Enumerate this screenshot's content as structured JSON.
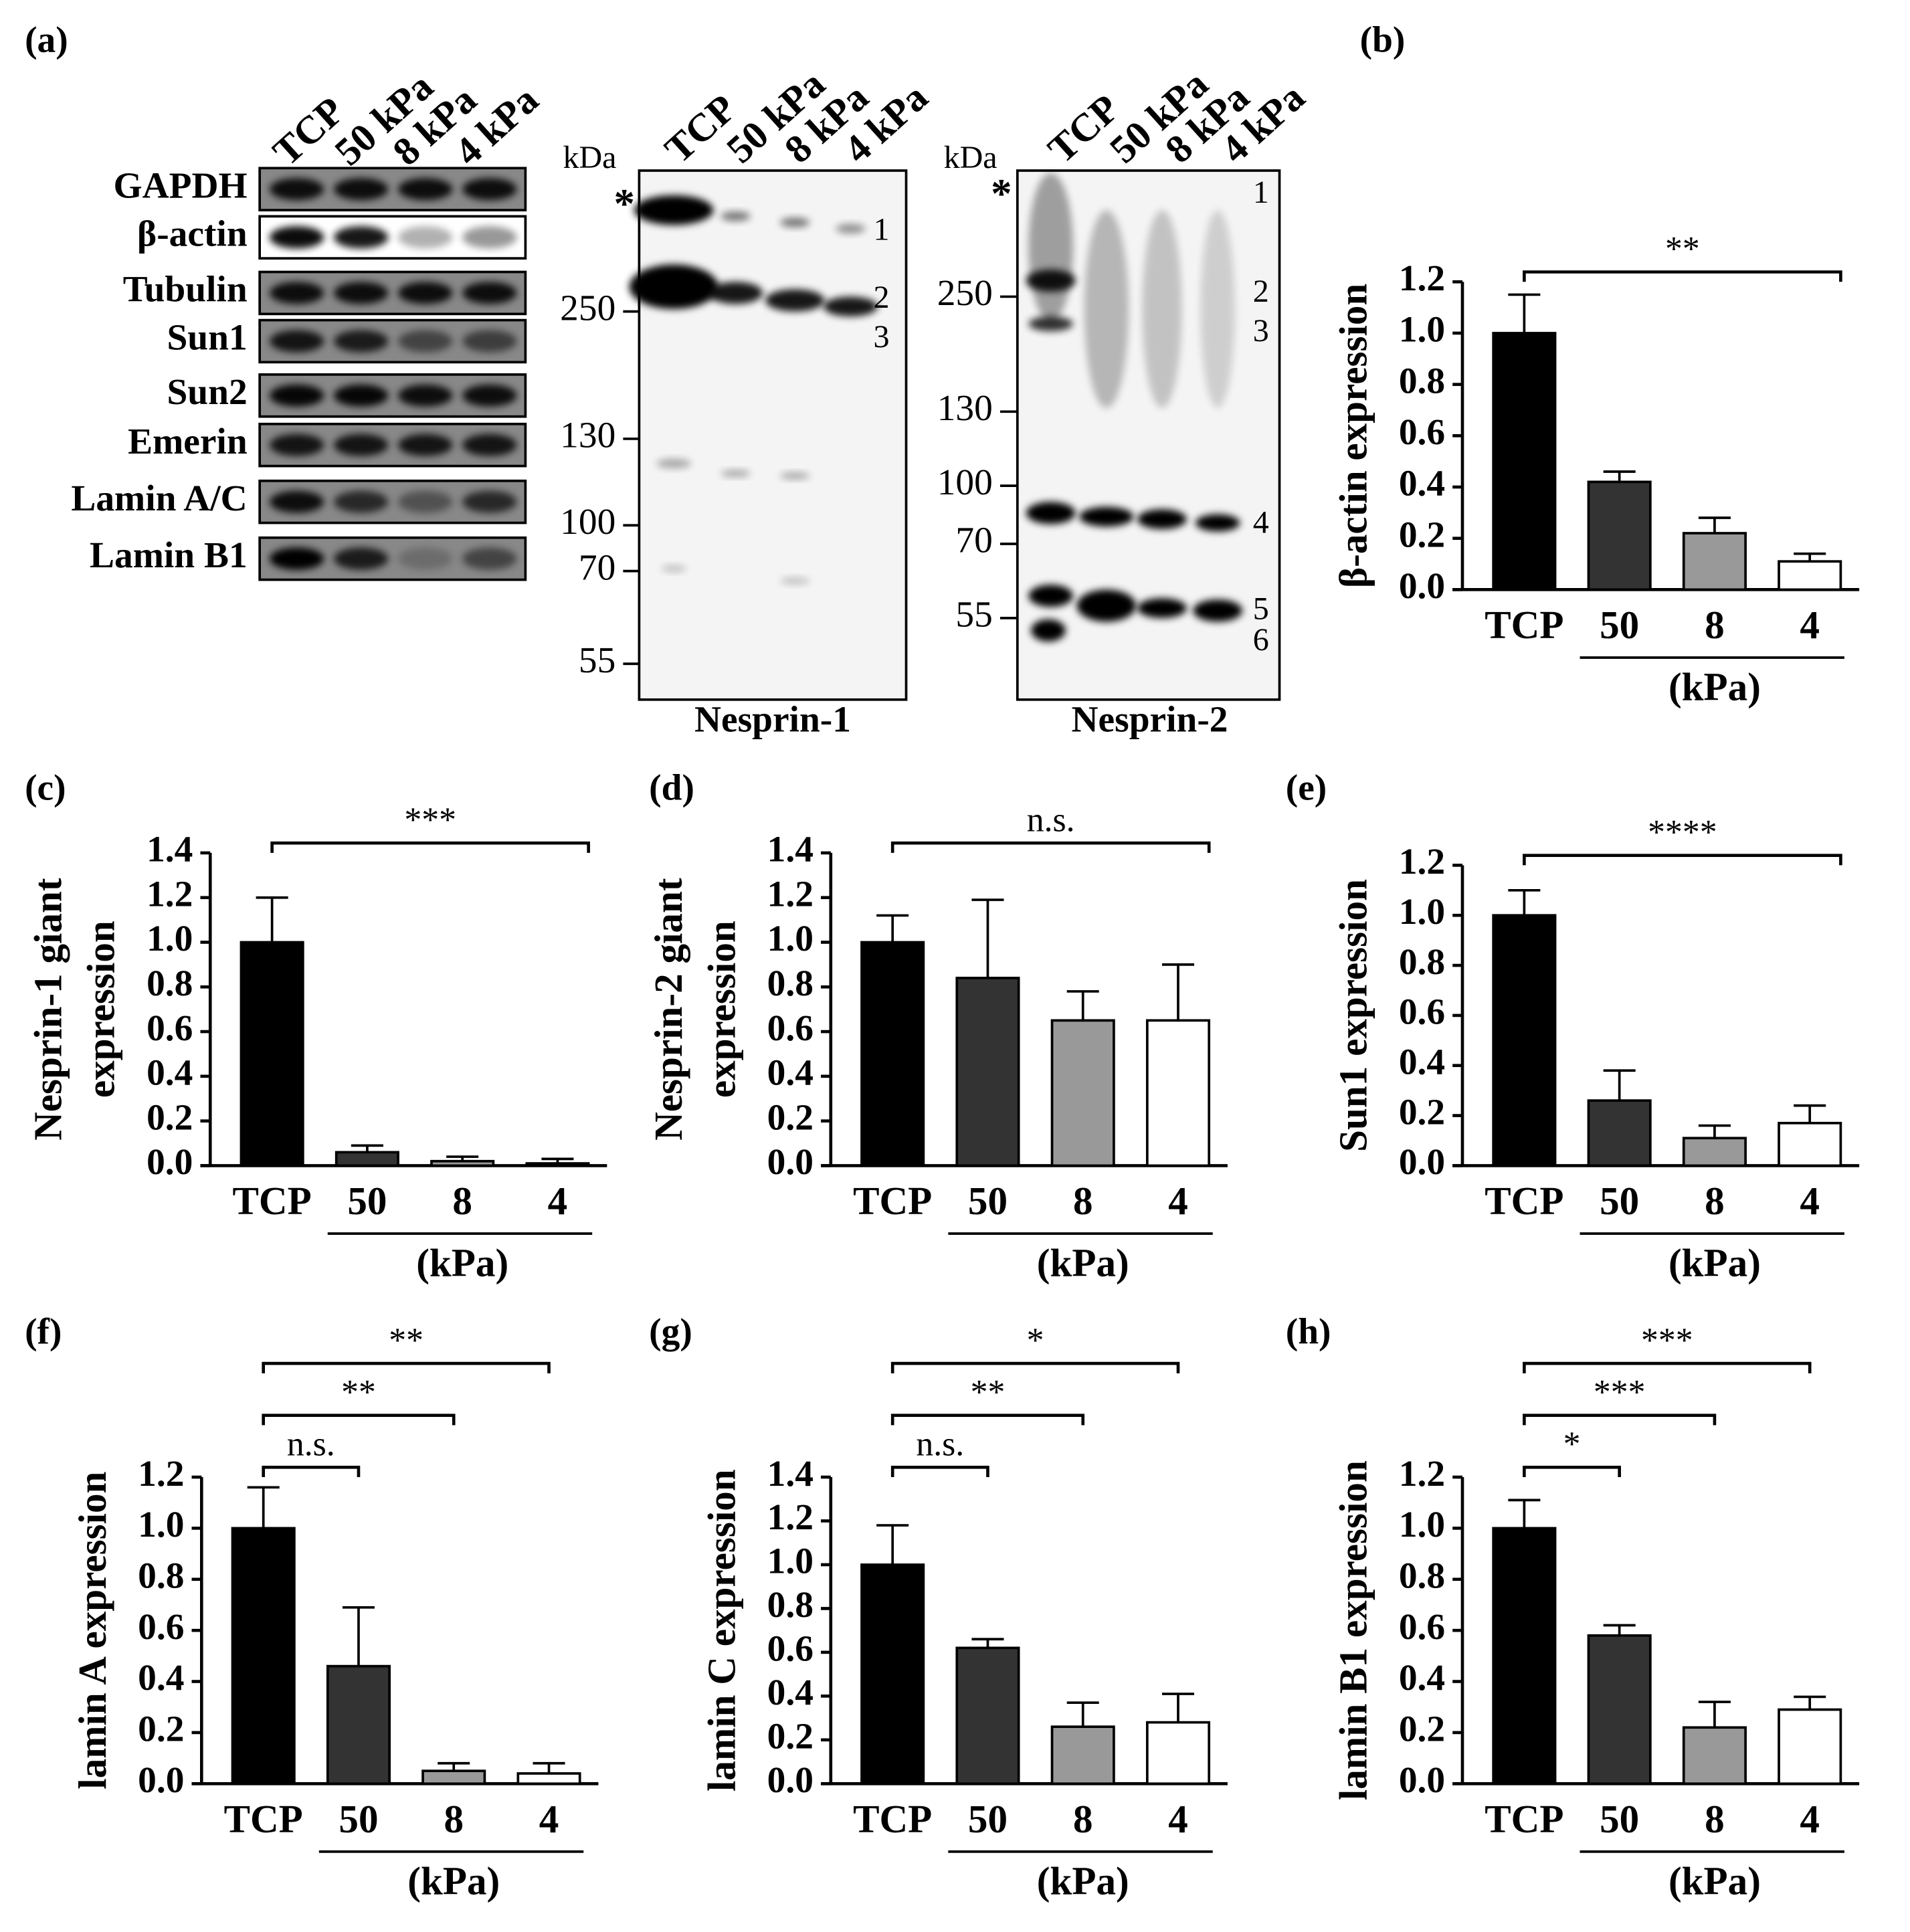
{
  "blots": {
    "panel": "(a)",
    "lanes": [
      "TCP",
      "50 kPa",
      "8 kPa",
      "4 kPa"
    ],
    "proteins": [
      "GAPDH",
      "β-actin",
      "Tubulin",
      "Sun1",
      "Sun2",
      "Emerin",
      "Lamin A/C",
      "Lamin B1"
    ],
    "kda_label": "kDa",
    "asterisk": "*",
    "nesprin1": {
      "title": "Nesprin-1",
      "markers": [
        250,
        130,
        100,
        70,
        55
      ],
      "band_numbers": [
        1,
        2,
        3
      ]
    },
    "nesprin2": {
      "title": "Nesprin-2",
      "markers": [
        250,
        130,
        100,
        70,
        55
      ],
      "band_numbers": [
        1,
        2,
        3,
        4,
        5,
        6
      ]
    }
  },
  "chart_data": [
    {
      "type": "bar",
      "panel": "(b)",
      "ylabel": "β-actin expression",
      "categories": [
        "TCP",
        "50",
        "8",
        "4"
      ],
      "unit": "(kPa)",
      "colors": [
        "#000000",
        "#333333",
        "#999999",
        "#ffffff"
      ],
      "values": [
        1.0,
        0.42,
        0.22,
        0.11
      ],
      "errors": [
        0.15,
        0.04,
        0.06,
        0.03
      ],
      "ylim": [
        0,
        1.2
      ],
      "yticks": [
        {
          "value": 0,
          "label": "0.0"
        },
        0.2,
        0.4,
        0.6,
        0.8,
        {
          "value": 1,
          "label": "1.0"
        },
        1.2
      ],
      "significance": [
        {
          "from": "TCP",
          "to": "4",
          "label": "**"
        }
      ]
    },
    {
      "type": "bar",
      "panel": "(c)",
      "ylabel": [
        "Nesprin-1 giant",
        "expression"
      ],
      "categories": [
        "TCP",
        "50",
        "8",
        "4"
      ],
      "unit": "(kPa)",
      "colors": [
        "#000000",
        "#333333",
        "#999999",
        "#ffffff"
      ],
      "values": [
        1.0,
        0.06,
        0.02,
        0.01
      ],
      "errors": [
        0.2,
        0.03,
        0.02,
        0.02
      ],
      "ylim": [
        0,
        1.4
      ],
      "yticks": [
        {
          "value": 0,
          "label": "0.0"
        },
        0.2,
        0.4,
        0.6,
        0.8,
        {
          "value": 1,
          "label": "1.0"
        },
        1.2,
        1.4
      ],
      "significance": [
        {
          "from": "TCP",
          "to": "4",
          "label": "***"
        }
      ]
    },
    {
      "type": "bar",
      "panel": "(d)",
      "ylabel": [
        "Nesprin-2 giant",
        "expression"
      ],
      "categories": [
        "TCP",
        "50",
        "8",
        "4"
      ],
      "unit": "(kPa)",
      "colors": [
        "#000000",
        "#333333",
        "#999999",
        "#ffffff"
      ],
      "values": [
        1.0,
        0.84,
        0.65,
        0.65
      ],
      "errors": [
        0.12,
        0.35,
        0.13,
        0.25
      ],
      "ylim": [
        0,
        1.4
      ],
      "yticks": [
        {
          "value": 0,
          "label": "0.0"
        },
        0.2,
        0.4,
        0.6,
        0.8,
        {
          "value": 1,
          "label": "1.0"
        },
        1.2,
        1.4
      ],
      "significance": [
        {
          "from": "TCP",
          "to": "4",
          "label": "n.s."
        }
      ]
    },
    {
      "type": "bar",
      "panel": "(e)",
      "ylabel": "Sun1 expression",
      "categories": [
        "TCP",
        "50",
        "8",
        "4"
      ],
      "unit": "(kPa)",
      "colors": [
        "#000000",
        "#333333",
        "#999999",
        "#ffffff"
      ],
      "values": [
        1.0,
        0.26,
        0.11,
        0.17
      ],
      "errors": [
        0.1,
        0.12,
        0.05,
        0.07
      ],
      "ylim": [
        0,
        1.2
      ],
      "yticks": [
        {
          "value": 0,
          "label": "0.0"
        },
        0.2,
        0.4,
        0.6,
        0.8,
        {
          "value": 1,
          "label": "1.0"
        },
        1.2
      ],
      "significance": [
        {
          "from": "TCP",
          "to": "4",
          "label": "****"
        }
      ]
    },
    {
      "type": "bar",
      "panel": "(f)",
      "ylabel": "lamin A expression",
      "categories": [
        "TCP",
        "50",
        "8",
        "4"
      ],
      "unit": "(kPa)",
      "colors": [
        "#000000",
        "#333333",
        "#999999",
        "#ffffff"
      ],
      "values": [
        1.0,
        0.46,
        0.05,
        0.04
      ],
      "errors": [
        0.16,
        0.23,
        0.03,
        0.04
      ],
      "ylim": [
        0,
        1.2
      ],
      "yticks": [
        {
          "value": 0,
          "label": "0.0"
        },
        0.2,
        0.4,
        0.6,
        0.8,
        {
          "value": 1,
          "label": "1.0"
        },
        1.2
      ],
      "significance": [
        {
          "from": "TCP",
          "to": "50",
          "label": "n.s."
        },
        {
          "from": "TCP",
          "to": "8",
          "label": "**"
        },
        {
          "from": "TCP",
          "to": "4",
          "label": "**"
        }
      ]
    },
    {
      "type": "bar",
      "panel": "(g)",
      "ylabel": "lamin C expression",
      "categories": [
        "TCP",
        "50",
        "8",
        "4"
      ],
      "unit": "(kPa)",
      "colors": [
        "#000000",
        "#333333",
        "#999999",
        "#ffffff"
      ],
      "values": [
        1.0,
        0.62,
        0.26,
        0.28
      ],
      "errors": [
        0.18,
        0.04,
        0.11,
        0.13
      ],
      "ylim": [
        0,
        1.4
      ],
      "yticks": [
        {
          "value": 0,
          "label": "0.0"
        },
        0.2,
        0.4,
        0.6,
        0.8,
        {
          "value": 1,
          "label": "1.0"
        },
        1.2,
        1.4
      ],
      "significance": [
        {
          "from": "TCP",
          "to": "50",
          "label": "n.s."
        },
        {
          "from": "TCP",
          "to": "8",
          "label": "**"
        },
        {
          "from": "TCP",
          "to": "4",
          "label": "*"
        }
      ]
    },
    {
      "type": "bar",
      "panel": "(h)",
      "ylabel": "lamin B1 expression",
      "categories": [
        "TCP",
        "50",
        "8",
        "4"
      ],
      "unit": "(kPa)",
      "colors": [
        "#000000",
        "#333333",
        "#999999",
        "#ffffff"
      ],
      "values": [
        1.0,
        0.58,
        0.22,
        0.29
      ],
      "errors": [
        0.11,
        0.04,
        0.1,
        0.05
      ],
      "ylim": [
        0,
        1.2
      ],
      "yticks": [
        {
          "value": 0,
          "label": "0.0"
        },
        0.2,
        0.4,
        0.6,
        0.8,
        {
          "value": 1,
          "label": "1.0"
        },
        1.2
      ],
      "significance": [
        {
          "from": "TCP",
          "to": "50",
          "label": "*"
        },
        {
          "from": "TCP",
          "to": "8",
          "label": "***"
        },
        {
          "from": "TCP",
          "to": "4",
          "label": "***"
        }
      ]
    }
  ]
}
